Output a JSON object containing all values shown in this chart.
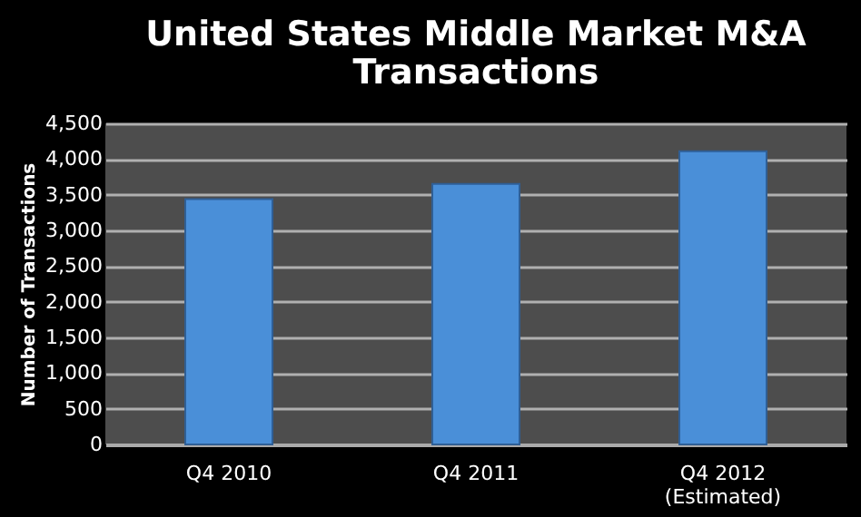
{
  "chart_data": {
    "type": "bar",
    "title": "United States Middle Market M&A Transactions",
    "categories": [
      "Q4 2010",
      "Q4 2011",
      "Q4 2012\n(Estimated)"
    ],
    "values": [
      3440,
      3650,
      4110
    ],
    "color": "#4a8fd8",
    "ylabel": "Number of Transactions",
    "ylim": [
      0,
      4500
    ],
    "yticks": [
      0,
      500,
      {
        "value": 1000,
        "label": "1,000"
      },
      {
        "value": 1500,
        "label": "1,500"
      },
      {
        "value": 2000,
        "label": "2,000"
      },
      {
        "value": 2500,
        "label": "2,500"
      },
      {
        "value": 3000,
        "label": "3,000"
      },
      {
        "value": 3500,
        "label": "3,500"
      },
      {
        "value": 4000,
        "label": "4,000"
      },
      {
        "value": 4500,
        "label": "4,500"
      }
    ],
    "grid": "y"
  }
}
